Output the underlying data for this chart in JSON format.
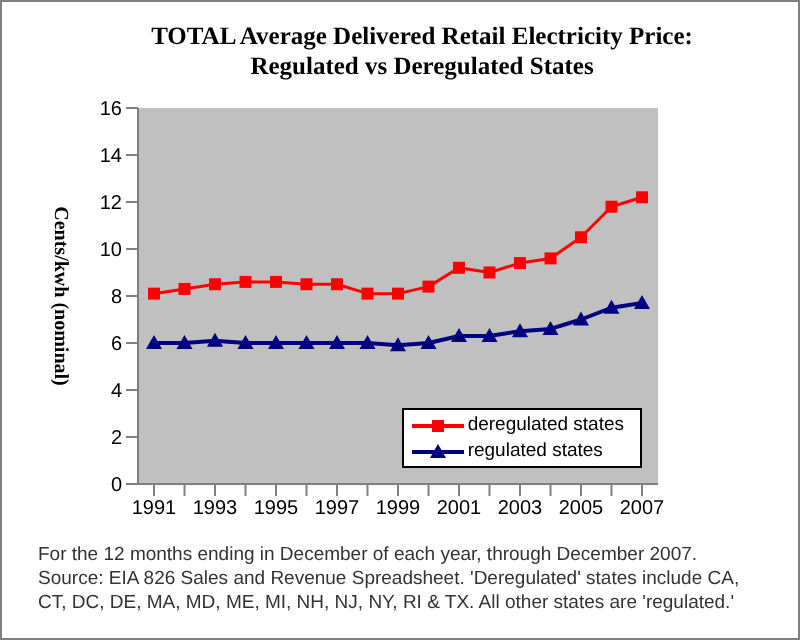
{
  "chart_data": {
    "type": "line",
    "title": "TOTAL Average Delivered Retail Electricity Price:\nRegulated vs Deregulated States",
    "ylabel": "Cents/kwh (nominal)",
    "categories": [
      "1991",
      null,
      "1993",
      null,
      "1995",
      null,
      "1997",
      null,
      "1999",
      null,
      "2001",
      null,
      "2003",
      null,
      "2005",
      null,
      "2007"
    ],
    "series": [
      {
        "name": "deregulated states",
        "color": "#ff0000",
        "marker": "square",
        "values": [
          8.1,
          8.3,
          8.5,
          8.6,
          8.6,
          8.5,
          8.5,
          8.1,
          8.1,
          8.4,
          9.2,
          9.0,
          9.4,
          9.6,
          10.5,
          11.8,
          12.2
        ]
      },
      {
        "name": "regulated states",
        "color": "#000080",
        "marker": "triangle",
        "values": [
          6.0,
          6.0,
          6.1,
          6.0,
          6.0,
          6.0,
          6.0,
          6.0,
          5.9,
          6.0,
          6.3,
          6.3,
          6.5,
          6.6,
          7.0,
          7.5,
          7.7
        ]
      }
    ],
    "ylim": [
      0,
      16
    ],
    "yticks": [
      0,
      2,
      4,
      6,
      8,
      10,
      12,
      14,
      16
    ],
    "legend": "bottom right",
    "annotations": [
      "For the 12 months ending in December of each year, through December 2007.  Source: EIA 826 Sales and Revenue Spreadsheet.  'Deregulated' states include CA, CT, DC, DE, MA, MD, ME, MI, NH, NJ, NY, RI & TX.  All other states are 'regulated.'"
    ]
  }
}
